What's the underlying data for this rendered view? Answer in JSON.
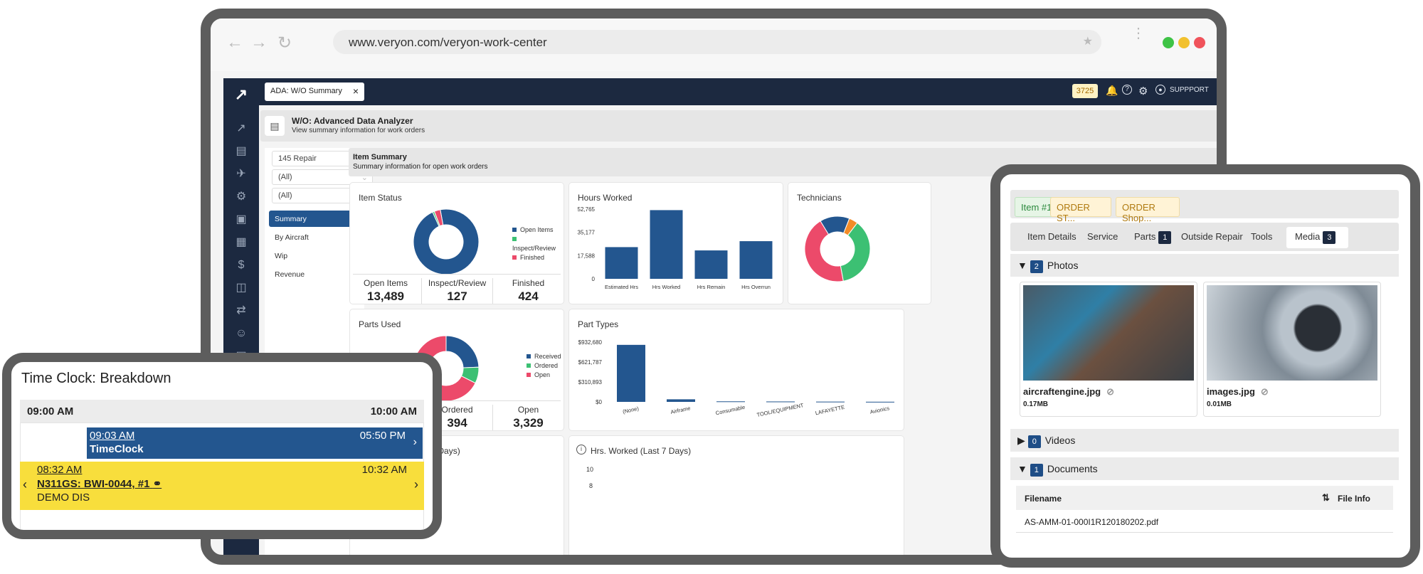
{
  "browser": {
    "url": "www.veryon.com/veryon-work-center"
  },
  "app": {
    "tab_label": "ADA: W/O Summary",
    "badge_count": "3725",
    "support_label": "SUPPPORT",
    "page_title": "W/O: Advanced Data Analyzer",
    "page_subtitle": "View summary information for work orders",
    "filters": [
      "145 Repair",
      "(All)",
      "(All)"
    ],
    "nav": [
      "Summary",
      "By Aircraft",
      "Wip",
      "Revenue"
    ],
    "section_title": "Item Summary",
    "section_subtitle": "Summary information for open work orders",
    "cards": {
      "item_status": "Item Status",
      "hours_worked": "Hours Worked",
      "technicians": "Technicians",
      "parts_used": "Parts Used",
      "part_types": "Part Types",
      "hours_last7": "ned (Last 7 Days)",
      "hrs_worked_last7": "Hrs. Worked (Last 7 Days)"
    },
    "item_status_legend": [
      "Open Items",
      "Inspect/Review",
      "Finished"
    ],
    "item_status_stats": [
      {
        "label": "Open Items",
        "value": "13,489"
      },
      {
        "label": "Inspect/Review",
        "value": "127"
      },
      {
        "label": "Finished",
        "value": "424"
      }
    ],
    "parts_used_legend": [
      "Received",
      "Ordered",
      "Open"
    ],
    "parts_used_stats": [
      {
        "label": "Ordered",
        "value": "394"
      },
      {
        "label": "Open",
        "value": "3,329"
      }
    ],
    "hrs_last7_ticks": [
      "10",
      "8"
    ],
    "colors": {
      "blue": "#23568f",
      "green": "#3cc073",
      "red": "#ec4a6a",
      "navy": "#1c2940"
    }
  },
  "chart_data": [
    {
      "type": "pie",
      "title": "Item Status",
      "categories": [
        "Open Items",
        "Inspect/Review",
        "Finished"
      ],
      "values": [
        13489,
        127,
        424
      ]
    },
    {
      "type": "bar",
      "title": "Hours Worked",
      "categories": [
        "Estimated Hrs",
        "Hrs Worked",
        "Hrs Remain",
        "Hrs Overrun"
      ],
      "values": [
        24000,
        52000,
        21500,
        28500
      ],
      "yticks": [
        "52,765",
        "35,177",
        "17,588",
        "0"
      ],
      "ylim": [
        0,
        52765
      ]
    },
    {
      "type": "pie",
      "title": "Parts Used",
      "categories": [
        "Received",
        "Ordered",
        "Open"
      ],
      "values": [
        1200,
        394,
        3329
      ]
    },
    {
      "type": "bar",
      "title": "Part Types",
      "categories": [
        "(None)",
        "Airframe",
        "Consumable",
        "TOOL/EQUIPMENT",
        "LAFAYETTE",
        "Avionics"
      ],
      "values": [
        890000,
        40000,
        8000,
        6000,
        4000,
        2000
      ],
      "yticks": [
        "$932,680",
        "$621,787",
        "$310,893",
        "$0"
      ],
      "ylim": [
        0,
        932680
      ]
    },
    {
      "type": "pie",
      "title": "Technicians",
      "categories": [
        "Blue",
        "Orange",
        "Green",
        "Red"
      ],
      "values": [
        10,
        3,
        25,
        30
      ]
    }
  ],
  "timeclock": {
    "title": "Time Clock: Breakdown",
    "start": "09:00 AM",
    "end": "10:00 AM",
    "entry1": {
      "start": "09:03 AM",
      "end": "05:50 PM",
      "label": "TimeClock"
    },
    "entry2": {
      "start": "08:32 AM",
      "end": "10:32 AM",
      "label": "N311GS: BWI-0044, #1",
      "sub": "DEMO DIS"
    }
  },
  "media": {
    "pills": [
      "Item #1",
      "ORDER ST...",
      "ORDER Shop..."
    ],
    "tabs": [
      "Item Details",
      "Service",
      "Parts",
      "Outside Repair",
      "Tools",
      "Media"
    ],
    "parts_count": "1",
    "media_count": "3",
    "photos_label": "Photos",
    "photos_count": "2",
    "videos_label": "Videos",
    "videos_count": "0",
    "documents_label": "Documents",
    "documents_count": "1",
    "photo1": {
      "name": "aircraftengine.jpg",
      "size": "0.17MB"
    },
    "photo2": {
      "name": "images.jpg",
      "size": "0.01MB"
    },
    "doc_header_filename": "Filename",
    "doc_header_info": "File Info",
    "doc_file": "AS-AMM-01-000I1R120180202.pdf"
  }
}
